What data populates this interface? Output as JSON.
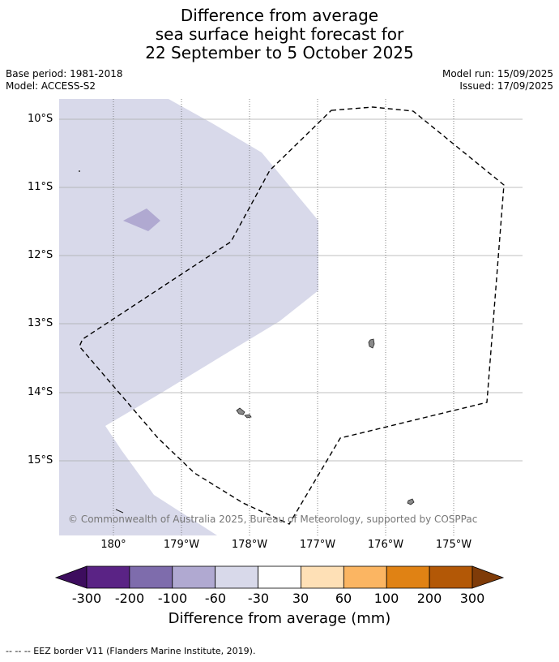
{
  "title_lines": [
    "Difference from average",
    "sea surface height forecast for",
    "22 September to 5 October 2025"
  ],
  "meta_left": [
    "Base period: 1981-2018",
    "Model: ACCESS-S2"
  ],
  "meta_right": [
    "Model run: 15/09/2025",
    "Issued: 17/09/2025"
  ],
  "lat_labels": [
    "10°S",
    "11°S",
    "12°S",
    "13°S",
    "14°S",
    "15°S"
  ],
  "lon_labels": [
    "180°",
    "179°W",
    "178°W",
    "177°W",
    "176°W",
    "175°W"
  ],
  "copyright": "© Commonwealth of Australia 2025, Bureau of Meteorology, supported by COSPPac",
  "colorbar": {
    "labels": [
      "-300",
      "-200",
      "-100",
      "-60",
      "-30",
      "30",
      "60",
      "100",
      "200",
      "300"
    ],
    "colors": [
      "#5a2385",
      "#7e6cac",
      "#b0a9d1",
      "#d8d9ea",
      "#ffffff",
      "#fee0b6",
      "#fbb562",
      "#e08214",
      "#b35806"
    ],
    "under_color": "#3d0d5e",
    "over_color": "#7f3b08",
    "title": "Difference from average (mm)"
  },
  "legend_note": "--  --  -- EEZ border V11 (Flanders Marine Institute, 2019)."
}
